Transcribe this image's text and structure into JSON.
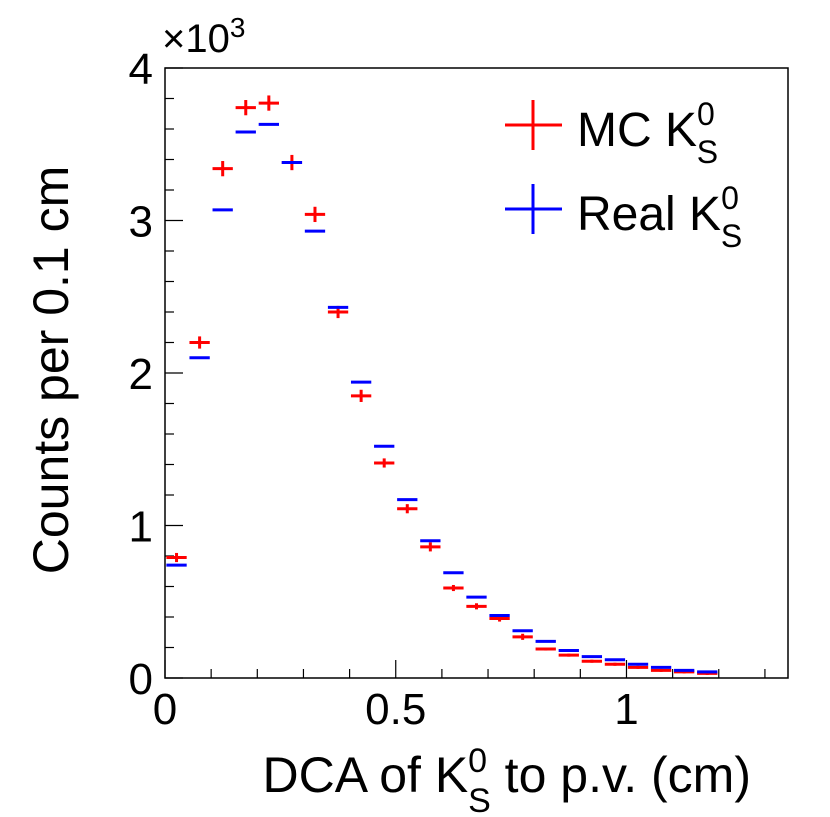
{
  "chart_data": {
    "type": "histogram",
    "title": "",
    "xlabel": {
      "prefix": "DCA of K",
      "sup": "0",
      "sub": "S",
      "suffix": " to p.v. (cm)"
    },
    "ylabel": "Counts per 0.1 cm",
    "y_multiplier": {
      "base": "×10",
      "exp": "3"
    },
    "xlim": [
      0,
      1.35
    ],
    "ylim": [
      0,
      4
    ],
    "x_ticks": [
      {
        "value": 0,
        "label": "0"
      },
      {
        "value": 0.5,
        "label": "0.5"
      },
      {
        "value": 1,
        "label": "1"
      }
    ],
    "y_ticks": [
      {
        "value": 0,
        "label": "0"
      },
      {
        "value": 1,
        "label": "1"
      },
      {
        "value": 2,
        "label": "2"
      },
      {
        "value": 3,
        "label": "3"
      },
      {
        "value": 4,
        "label": "4"
      }
    ],
    "bin_width": 0.05,
    "legend_position": "top-right",
    "series": [
      {
        "name": "MC",
        "legend_label": {
          "prefix": "MC K",
          "sup": "0",
          "sub": "S"
        },
        "color": "#ff0000",
        "x": [
          0.025,
          0.075,
          0.125,
          0.175,
          0.225,
          0.275,
          0.325,
          0.375,
          0.425,
          0.475,
          0.525,
          0.575,
          0.625,
          0.675,
          0.725,
          0.775,
          0.825,
          0.875,
          0.925,
          0.975,
          1.025,
          1.075,
          1.125,
          1.175
        ],
        "values": [
          0.79,
          2.2,
          3.34,
          3.74,
          3.77,
          3.38,
          3.04,
          2.4,
          1.85,
          1.41,
          1.11,
          0.86,
          0.59,
          0.47,
          0.39,
          0.27,
          0.19,
          0.15,
          0.11,
          0.09,
          0.07,
          0.05,
          0.04,
          0.03
        ],
        "errors": [
          0.03,
          0.04,
          0.05,
          0.05,
          0.05,
          0.05,
          0.05,
          0.04,
          0.04,
          0.03,
          0.03,
          0.03,
          0.02,
          0.02,
          0.02,
          0.02,
          0.01,
          0.01,
          0.01,
          0.01,
          0.01,
          0.01,
          0.01,
          0.01
        ]
      },
      {
        "name": "Real",
        "legend_label": {
          "prefix": "Real K",
          "sup": "0",
          "sub": "S"
        },
        "color": "#0000ff",
        "x": [
          0.025,
          0.075,
          0.125,
          0.175,
          0.225,
          0.275,
          0.325,
          0.375,
          0.425,
          0.475,
          0.525,
          0.575,
          0.625,
          0.675,
          0.725,
          0.775,
          0.825,
          0.875,
          0.925,
          0.975,
          1.025,
          1.075,
          1.125,
          1.175
        ],
        "values": [
          0.74,
          2.1,
          3.07,
          3.58,
          3.63,
          3.38,
          2.93,
          2.43,
          1.94,
          1.52,
          1.17,
          0.9,
          0.69,
          0.53,
          0.41,
          0.31,
          0.24,
          0.18,
          0.14,
          0.12,
          0.09,
          0.07,
          0.05,
          0.04
        ],
        "errors": [
          0,
          0,
          0,
          0,
          0,
          0,
          0,
          0,
          0,
          0,
          0,
          0,
          0,
          0,
          0,
          0,
          0,
          0,
          0,
          0,
          0,
          0,
          0,
          0
        ]
      }
    ]
  }
}
